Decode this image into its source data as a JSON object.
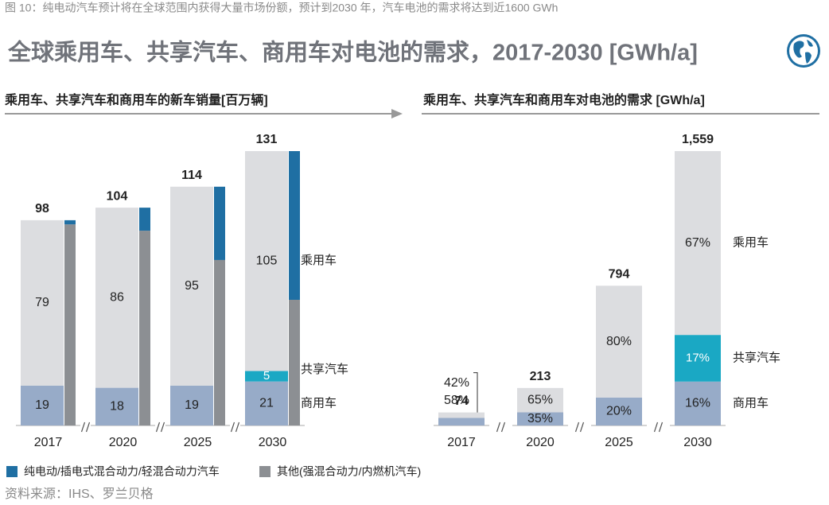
{
  "caption": "图 10：纯电动汽车预计将在全球范围内获得大量市场份额，预计到2030 年，汽车电池的需求将达到近1600 GWh",
  "title": "全球乘用车、共享汽车、商用车对电池的需求，2017-2030 [GWh/a]",
  "source": "资料来源：IHS、罗兰贝格",
  "chart_data": [
    {
      "type": "stacked_bar",
      "title": "乘用车、共享汽车和商用车的新车销量[百万辆]",
      "categories": [
        "2017",
        "2020",
        "2025",
        "2030"
      ],
      "totals": [
        98,
        104,
        114,
        131
      ],
      "series": [
        {
          "name": "商用车",
          "color": "#97abc8",
          "values": [
            19,
            18,
            19,
            21
          ]
        },
        {
          "name": "共享汽车",
          "color": "#1aa8c4",
          "values": [
            null,
            null,
            null,
            5
          ]
        },
        {
          "name": "乘用车",
          "color": "#dcdde0",
          "values": [
            79,
            86,
            95,
            105
          ]
        }
      ],
      "side_series": [
        {
          "name": "其他(强混合动力/内燃机汽车)",
          "color": "#8c8f93",
          "values": [
            96,
            93,
            79,
            60
          ]
        },
        {
          "name": "纯电动/插电式混合动力/轻混合动力汽车",
          "color": "#1f6fa3",
          "values": [
            2,
            11,
            35,
            71
          ]
        }
      ]
    },
    {
      "type": "percent_stacked_bar",
      "title": "乘用车、共享汽车和商用车对电池的需求 [GWh/a]",
      "categories": [
        "2017",
        "2020",
        "2025",
        "2030"
      ],
      "totals": [
        74,
        213,
        794,
        1559
      ],
      "total_labels": [
        "74",
        "213",
        "794",
        "1,559"
      ],
      "series": [
        {
          "name": "商用车",
          "color": "#97abc8",
          "values": [
            58,
            35,
            20,
            16
          ],
          "value_labels": [
            "58%",
            "35%",
            "20%",
            "16%"
          ]
        },
        {
          "name": "共享汽车",
          "color": "#1aa8c4",
          "values": [
            null,
            null,
            null,
            17
          ],
          "value_labels": [
            null,
            null,
            null,
            "17%"
          ]
        },
        {
          "name": "乘用车",
          "color": "#dcdde0",
          "values": [
            42,
            65,
            80,
            67
          ],
          "value_labels": [
            "42%",
            "65%",
            "80%",
            "67%"
          ]
        }
      ]
    }
  ]
}
